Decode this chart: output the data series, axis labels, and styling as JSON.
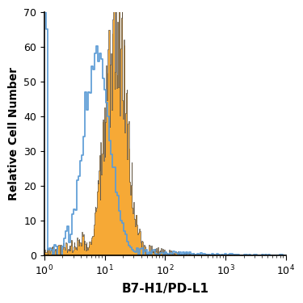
{
  "title": "",
  "xlabel": "B7-H1/PD-L1",
  "ylabel": "Relative Cell Number",
  "xlim": [
    1,
    10000
  ],
  "ylim": [
    0,
    70
  ],
  "yticks": [
    0,
    10,
    20,
    30,
    40,
    50,
    60,
    70
  ],
  "blue_peak_log": 0.87,
  "blue_sigma": 0.22,
  "blue_height": 58,
  "orange_peak_log": 1.18,
  "orange_sigma": 0.18,
  "orange_height": 65,
  "orange_color": "#F5A020",
  "blue_color": "#5B9BD5",
  "dark_outline_color": "#2a2a2a",
  "background_color": "#ffffff",
  "n_bins_orange": 400,
  "n_bins_blue": 150
}
